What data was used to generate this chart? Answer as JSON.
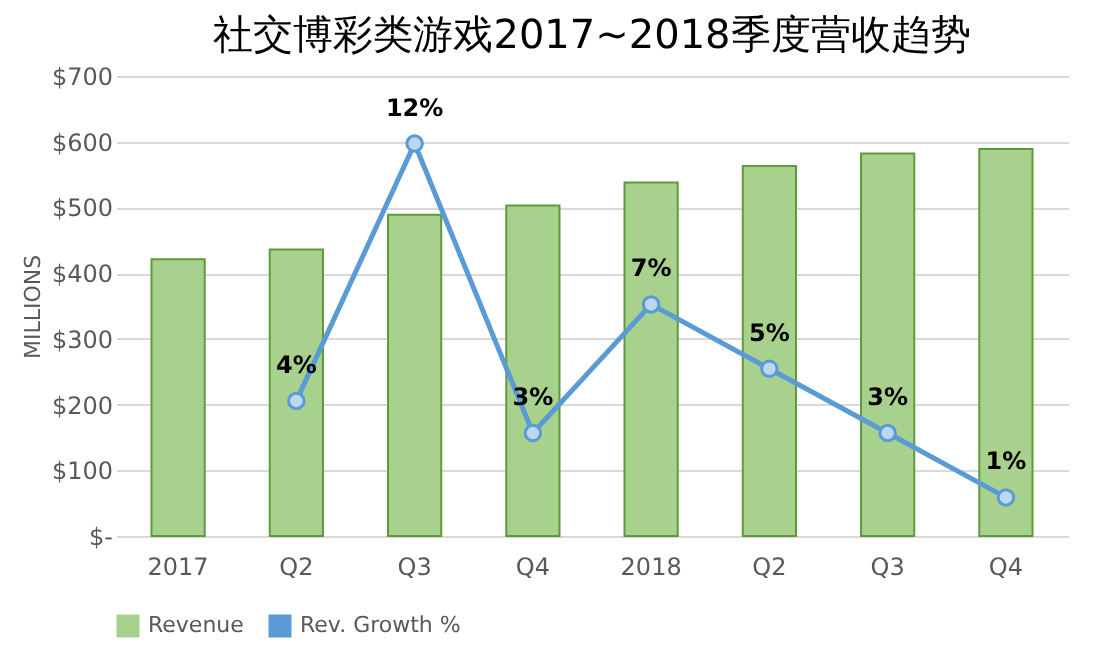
{
  "chart_data": {
    "type": "bar",
    "title": "社交博彩类游戏2017~2018季度营收趋势",
    "ylabel": "MILLIONS",
    "categories": [
      "2017",
      "Q2",
      "Q3",
      "Q4",
      "2018",
      "Q2",
      "Q3",
      "Q4"
    ],
    "series": [
      {
        "name": "Revenue",
        "color": "#a9d18e",
        "values": [
          421,
          436,
          489,
          503,
          538,
          563,
          582,
          589
        ]
      },
      {
        "name": "Rev. Growth %",
        "type": "line",
        "axis": "y2",
        "color": "#5b9bd5",
        "marker": "circle",
        "values": [
          null,
          4,
          12,
          3,
          7,
          5,
          3,
          1
        ],
        "value_labels": [
          null,
          "4%",
          "12%",
          "3%",
          "7%",
          "5%",
          "3%",
          "1%"
        ]
      }
    ],
    "ylim": [
      0,
      700
    ],
    "yticks": [
      {
        "value": 0,
        "label": "$-"
      },
      {
        "value": 100,
        "label": "$100"
      },
      {
        "value": 200,
        "label": "$200"
      },
      {
        "value": 300,
        "label": "$300"
      },
      {
        "value": 400,
        "label": "$400"
      },
      {
        "value": 500,
        "label": "$500"
      },
      {
        "value": 600,
        "label": "$600"
      },
      {
        "value": 700,
        "label": "$700"
      }
    ],
    "y2lim": [
      -0.2,
      14.1
    ],
    "grid": "y",
    "legend": "bottom"
  }
}
